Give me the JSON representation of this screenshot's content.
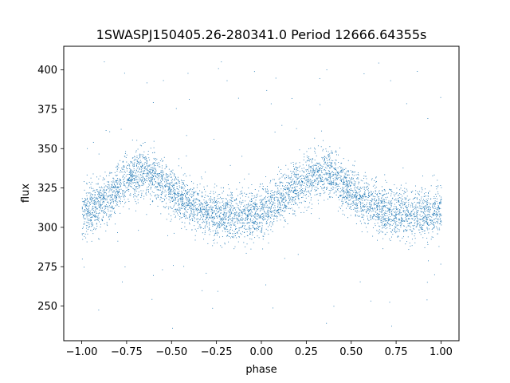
{
  "chart_data": {
    "type": "scatter",
    "title": "1SWASPJ150405.26-280341.0 Period 12666.64355s",
    "xlabel": "phase",
    "ylabel": "flux",
    "xlim": [
      -1.1,
      1.1
    ],
    "ylim": [
      228,
      415
    ],
    "xticks": [
      -1.0,
      -0.75,
      -0.5,
      -0.25,
      0.0,
      0.25,
      0.5,
      0.75,
      1.0
    ],
    "xtick_labels": [
      "−1.00",
      "−0.75",
      "−0.50",
      "−0.25",
      "0.00",
      "0.25",
      "0.50",
      "0.75",
      "1.00"
    ],
    "yticks": [
      250,
      275,
      300,
      325,
      350,
      375,
      400
    ],
    "ytick_labels": [
      "250",
      "275",
      "300",
      "325",
      "350",
      "375",
      "400"
    ],
    "grid": false,
    "marker_color": "#1f77b4",
    "series": [
      {
        "x": [
          -1.0,
          -0.95,
          -0.9,
          -0.85,
          -0.8,
          -0.75,
          -0.7,
          -0.65,
          -0.6,
          -0.55,
          -0.5,
          -0.45,
          -0.4,
          -0.35,
          -0.3,
          -0.25,
          -0.2,
          -0.15,
          -0.1,
          -0.05,
          0.0,
          0.05,
          0.1,
          0.15,
          0.2,
          0.25,
          0.3,
          0.35,
          0.4,
          0.45,
          0.5,
          0.55,
          0.6,
          0.65,
          0.7,
          0.75,
          0.8,
          0.85,
          0.9,
          0.95,
          1.0
        ],
        "y": [
          311,
          313,
          316,
          320,
          325,
          330,
          334,
          336,
          333,
          328,
          323,
          319,
          315,
          312,
          310,
          309,
          308,
          307,
          307,
          308,
          310,
          313,
          317,
          322,
          327,
          331,
          334,
          335,
          333,
          328,
          323,
          318,
          315,
          312,
          310,
          309,
          308,
          308,
          309,
          310,
          311
        ],
        "spread": 11,
        "n_points_per_bin": 140,
        "outlier_range": [
          236,
          407
        ]
      }
    ]
  }
}
